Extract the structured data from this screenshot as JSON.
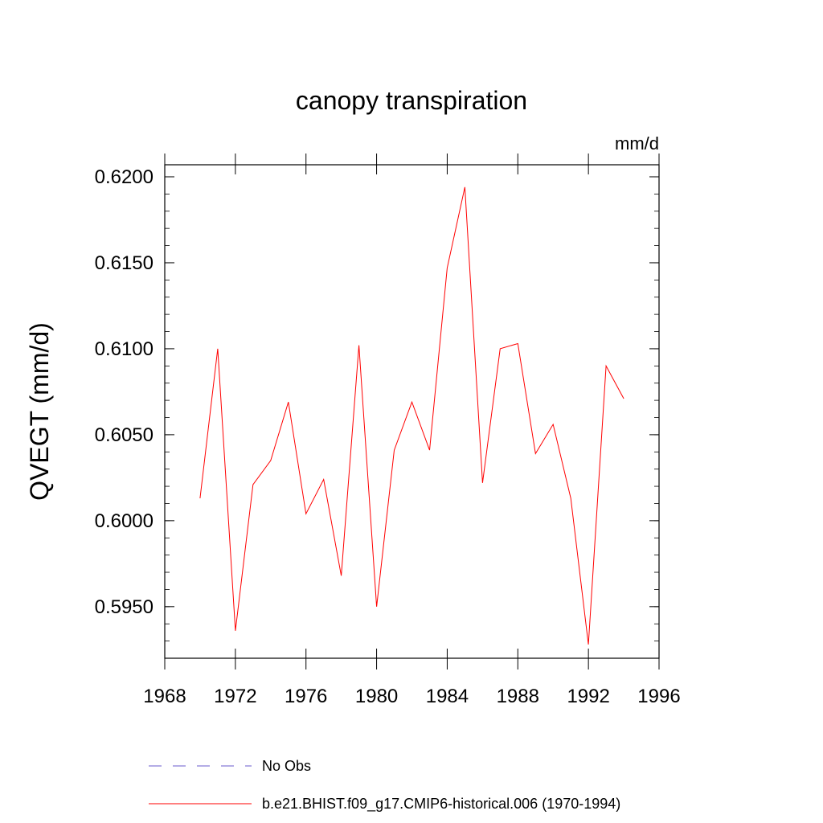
{
  "chart_data": {
    "type": "line",
    "title": "canopy transpiration",
    "units": "mm/d",
    "ylabel": "QVEGT  (mm/d)",
    "xlabel": "",
    "xlim": [
      1968,
      1996
    ],
    "ylim": [
      0.592,
      0.6207
    ],
    "xticks": [
      1968,
      1972,
      1976,
      1980,
      1984,
      1988,
      1992,
      1996
    ],
    "xtick_labels": [
      "1968",
      "1972",
      "1976",
      "1980",
      "1984",
      "1988",
      "1992",
      "1996"
    ],
    "yticks": [
      0.595,
      0.6,
      0.605,
      0.61,
      0.615,
      0.62
    ],
    "ytick_labels": [
      "0.5950",
      "0.6000",
      "0.6050",
      "0.6100",
      "0.6150",
      "0.6200"
    ],
    "grid": false,
    "legend_position": "bottom",
    "series": [
      {
        "name": "b.e21.BHIST.f09_g17.CMIP6-historical.006 (1970-1994)",
        "color": "#ff0000",
        "style": "solid",
        "x": [
          1970,
          1971,
          1972,
          1973,
          1974,
          1975,
          1976,
          1977,
          1978,
          1979,
          1980,
          1981,
          1982,
          1983,
          1984,
          1985,
          1986,
          1987,
          1988,
          1989,
          1990,
          1991,
          1992,
          1993,
          1994
        ],
        "y": [
          0.6013,
          0.61,
          0.5936,
          0.6021,
          0.6035,
          0.6069,
          0.6004,
          0.6024,
          0.5968,
          0.6102,
          0.595,
          0.6041,
          0.6069,
          0.6041,
          0.6147,
          0.6194,
          0.6022,
          0.61,
          0.6103,
          0.6039,
          0.6056,
          0.6013,
          0.5928,
          0.609,
          0.6071
        ]
      }
    ],
    "legend": [
      {
        "label": "No Obs",
        "color": "#6a5acd",
        "style": "dashed"
      },
      {
        "label": "b.e21.BHIST.f09_g17.CMIP6-historical.006 (1970-1994)",
        "color": "#ff0000",
        "style": "solid"
      }
    ]
  }
}
